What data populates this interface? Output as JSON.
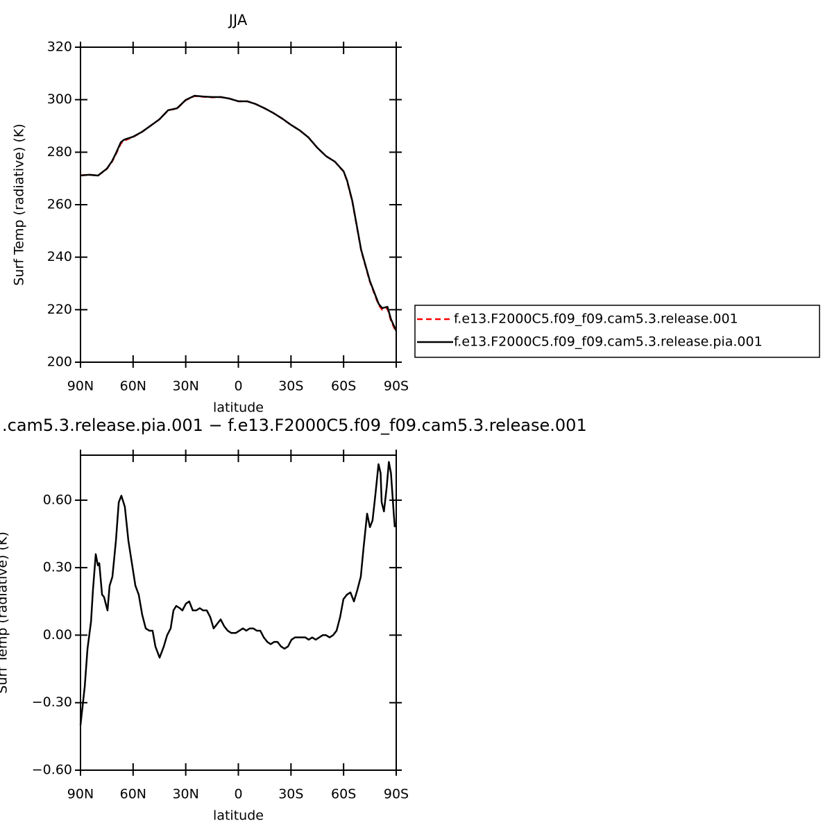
{
  "chart_data": [
    {
      "type": "line",
      "title": "JJA",
      "xlabel": "latitude",
      "ylabel": "Surf Temp (radiative) (K)",
      "x": [
        90,
        85,
        80,
        75,
        72,
        70,
        67,
        65,
        60,
        55,
        50,
        45,
        40,
        35,
        30,
        25,
        20,
        15,
        10,
        5,
        0,
        -5,
        -10,
        -15,
        -20,
        -25,
        -30,
        -35,
        -40,
        -45,
        -50,
        -55,
        -60,
        -62,
        -65,
        -70,
        -75,
        -80,
        -82,
        -85,
        -87,
        -90
      ],
      "series": [
        {
          "name": "f.e13.F2000C5.f09_f09.cam5.3.release.001",
          "color": "#ff0000",
          "dashed": true,
          "values": [
            271.2,
            271.4,
            271.1,
            273.6,
            276.4,
            279.0,
            283.3,
            284.4,
            285.8,
            287.7,
            290.1,
            292.5,
            296.0,
            296.6,
            299.8,
            301.4,
            301.1,
            300.9,
            301.0,
            300.4,
            299.4,
            299.4,
            298.3,
            296.7,
            294.9,
            292.8,
            290.4,
            288.3,
            285.6,
            281.7,
            278.5,
            276.4,
            272.6,
            269.0,
            261.1,
            242.6,
            230.6,
            221.8,
            220.0,
            220.5,
            215.8,
            211.4
          ]
        },
        {
          "name": "f.e13.F2000C5.f09_f09.cam5.3.release.pia.001",
          "color": "#000000",
          "dashed": false,
          "values": [
            271.1,
            271.4,
            271.1,
            273.7,
            276.6,
            279.3,
            283.8,
            284.8,
            285.9,
            287.7,
            290.1,
            292.5,
            296.0,
            296.7,
            299.9,
            301.5,
            301.2,
            301.0,
            301.0,
            300.4,
            299.4,
            299.4,
            298.3,
            296.7,
            294.9,
            292.8,
            290.4,
            288.3,
            285.6,
            281.7,
            278.5,
            276.4,
            272.7,
            269.2,
            261.3,
            242.8,
            230.9,
            222.2,
            220.6,
            221.1,
            216.4,
            211.9
          ]
        }
      ],
      "xlim": [
        90,
        -90
      ],
      "xticks": [
        {
          "value": 90,
          "label": "90N"
        },
        {
          "value": 60,
          "label": "60N"
        },
        {
          "value": 30,
          "label": "30N"
        },
        0,
        {
          "value": -30,
          "label": "30S"
        },
        {
          "value": -60,
          "label": "60S"
        },
        {
          "value": -90,
          "label": "90S"
        }
      ],
      "ylim": [
        200,
        320
      ],
      "yticks": [
        200,
        220,
        240,
        260,
        280,
        300,
        320
      ],
      "legend": "right"
    },
    {
      "type": "line",
      "title": ".cam5.3.release.pia.001 − f.e13.F2000C5.f09_f09.cam5.3.release.001",
      "xlabel": "latitude",
      "ylabel": "Surf Temp (radiative) (K)",
      "x": [
        90,
        87.6,
        86,
        84,
        82.9,
        81.3,
        80.1,
        79.3,
        77.7,
        76.6,
        74.6,
        73.4,
        71.8,
        69.8,
        68.2,
        66.7,
        64.7,
        62.7,
        60.7,
        58.7,
        56.8,
        54.8,
        52.8,
        50.8,
        48.9,
        47.3,
        44.9,
        42.5,
        40.6,
        38.6,
        37,
        35.4,
        33.4,
        31.9,
        29.9,
        28,
        26,
        24,
        22,
        20.1,
        18,
        16,
        14.1,
        12.1,
        10.1,
        8.1,
        6.1,
        4.1,
        1.4,
        -0.6,
        -2.6,
        -4.5,
        -6.5,
        -8.5,
        -10.5,
        -12.5,
        -14.5,
        -16.5,
        -18.4,
        -20.4,
        -22.3,
        -24.3,
        -26.3,
        -28.3,
        -30.3,
        -32.3,
        -34.2,
        -36.2,
        -38.2,
        -40.1,
        -42.1,
        -44.1,
        -46.1,
        -48.1,
        -50,
        -52,
        -54,
        -56,
        -58,
        -59.9,
        -61.9,
        -63.9,
        -65.9,
        -67.8,
        -69.8,
        -71.4,
        -73.4,
        -75,
        -76.5,
        -78.2,
        -79.9,
        -81.1,
        -81.7,
        -83,
        -84.6,
        -85.8,
        -87,
        -88.6,
        -89.2
      ],
      "series": [
        {
          "color": "#000000",
          "values": [
            -0.4,
            -0.23,
            -0.06,
            0.06,
            0.2,
            0.36,
            0.31,
            0.32,
            0.18,
            0.17,
            0.11,
            0.22,
            0.26,
            0.42,
            0.59,
            0.62,
            0.57,
            0.42,
            0.32,
            0.22,
            0.18,
            0.09,
            0.03,
            0.02,
            0.02,
            -0.05,
            -0.1,
            -0.05,
            0.0,
            0.03,
            0.11,
            0.13,
            0.12,
            0.11,
            0.14,
            0.15,
            0.11,
            0.11,
            0.12,
            0.11,
            0.11,
            0.08,
            0.03,
            0.05,
            0.07,
            0.04,
            0.02,
            0.01,
            0.01,
            0.02,
            0.03,
            0.02,
            0.03,
            0.03,
            0.02,
            0.02,
            -0.01,
            -0.03,
            -0.04,
            -0.03,
            -0.03,
            -0.05,
            -0.06,
            -0.05,
            -0.02,
            -0.01,
            -0.01,
            -0.01,
            -0.01,
            -0.02,
            -0.01,
            -0.02,
            -0.01,
            0.0,
            0.0,
            -0.01,
            0.0,
            0.02,
            0.08,
            0.16,
            0.18,
            0.19,
            0.15,
            0.2,
            0.26,
            0.39,
            0.54,
            0.48,
            0.51,
            0.63,
            0.76,
            0.72,
            0.59,
            0.55,
            0.66,
            0.77,
            0.72,
            0.54,
            0.48
          ]
        }
      ],
      "xlim": [
        90,
        -90
      ],
      "xticks": [
        {
          "value": 90,
          "label": "90N"
        },
        {
          "value": 60,
          "label": "60N"
        },
        {
          "value": 30,
          "label": "30N"
        },
        0,
        {
          "value": -30,
          "label": "30S"
        },
        {
          "value": -60,
          "label": "60S"
        },
        {
          "value": -90,
          "label": "90S"
        }
      ],
      "ylim": [
        -0.6,
        0.8
      ],
      "yticks": [
        {
          "value": -0.6,
          "label": "−0.60"
        },
        {
          "value": -0.3,
          "label": "−0.30"
        },
        {
          "value": 0,
          "label": "0.00"
        },
        {
          "value": 0.3,
          "label": "0.30"
        },
        {
          "value": 0.6,
          "label": "0.60"
        }
      ]
    }
  ]
}
